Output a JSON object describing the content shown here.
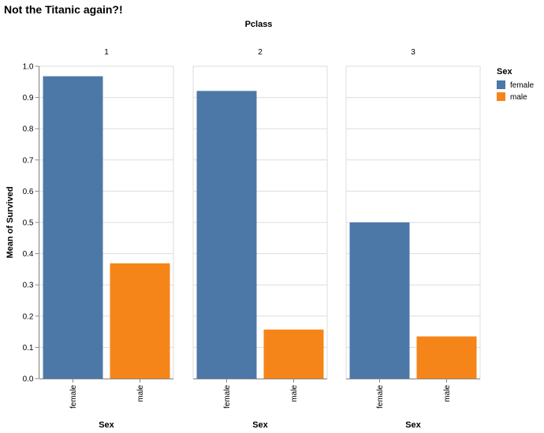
{
  "chart_data": {
    "type": "bar",
    "title": "Not the Titanic again?!",
    "facet": {
      "title": "Pclass",
      "values": [
        "1",
        "2",
        "3"
      ]
    },
    "categories": [
      "female",
      "male"
    ],
    "xlabel": "Sex",
    "ylabel": "Mean of Survived",
    "ylim": [
      0,
      1.0
    ],
    "yticks": [
      "0.0",
      "0.1",
      "0.2",
      "0.3",
      "0.4",
      "0.5",
      "0.6",
      "0.7",
      "0.8",
      "0.9",
      "1.0"
    ],
    "grid": true,
    "panels": [
      {
        "pclass": "1",
        "values": [
          0.968,
          0.369
        ]
      },
      {
        "pclass": "2",
        "values": [
          0.921,
          0.157
        ]
      },
      {
        "pclass": "3",
        "values": [
          0.5,
          0.135
        ]
      }
    ],
    "legend": {
      "title": "Sex",
      "placement": "right",
      "entries": [
        {
          "label": "female",
          "color": "#4c78a8"
        },
        {
          "label": "male",
          "color": "#f58518"
        }
      ]
    }
  }
}
